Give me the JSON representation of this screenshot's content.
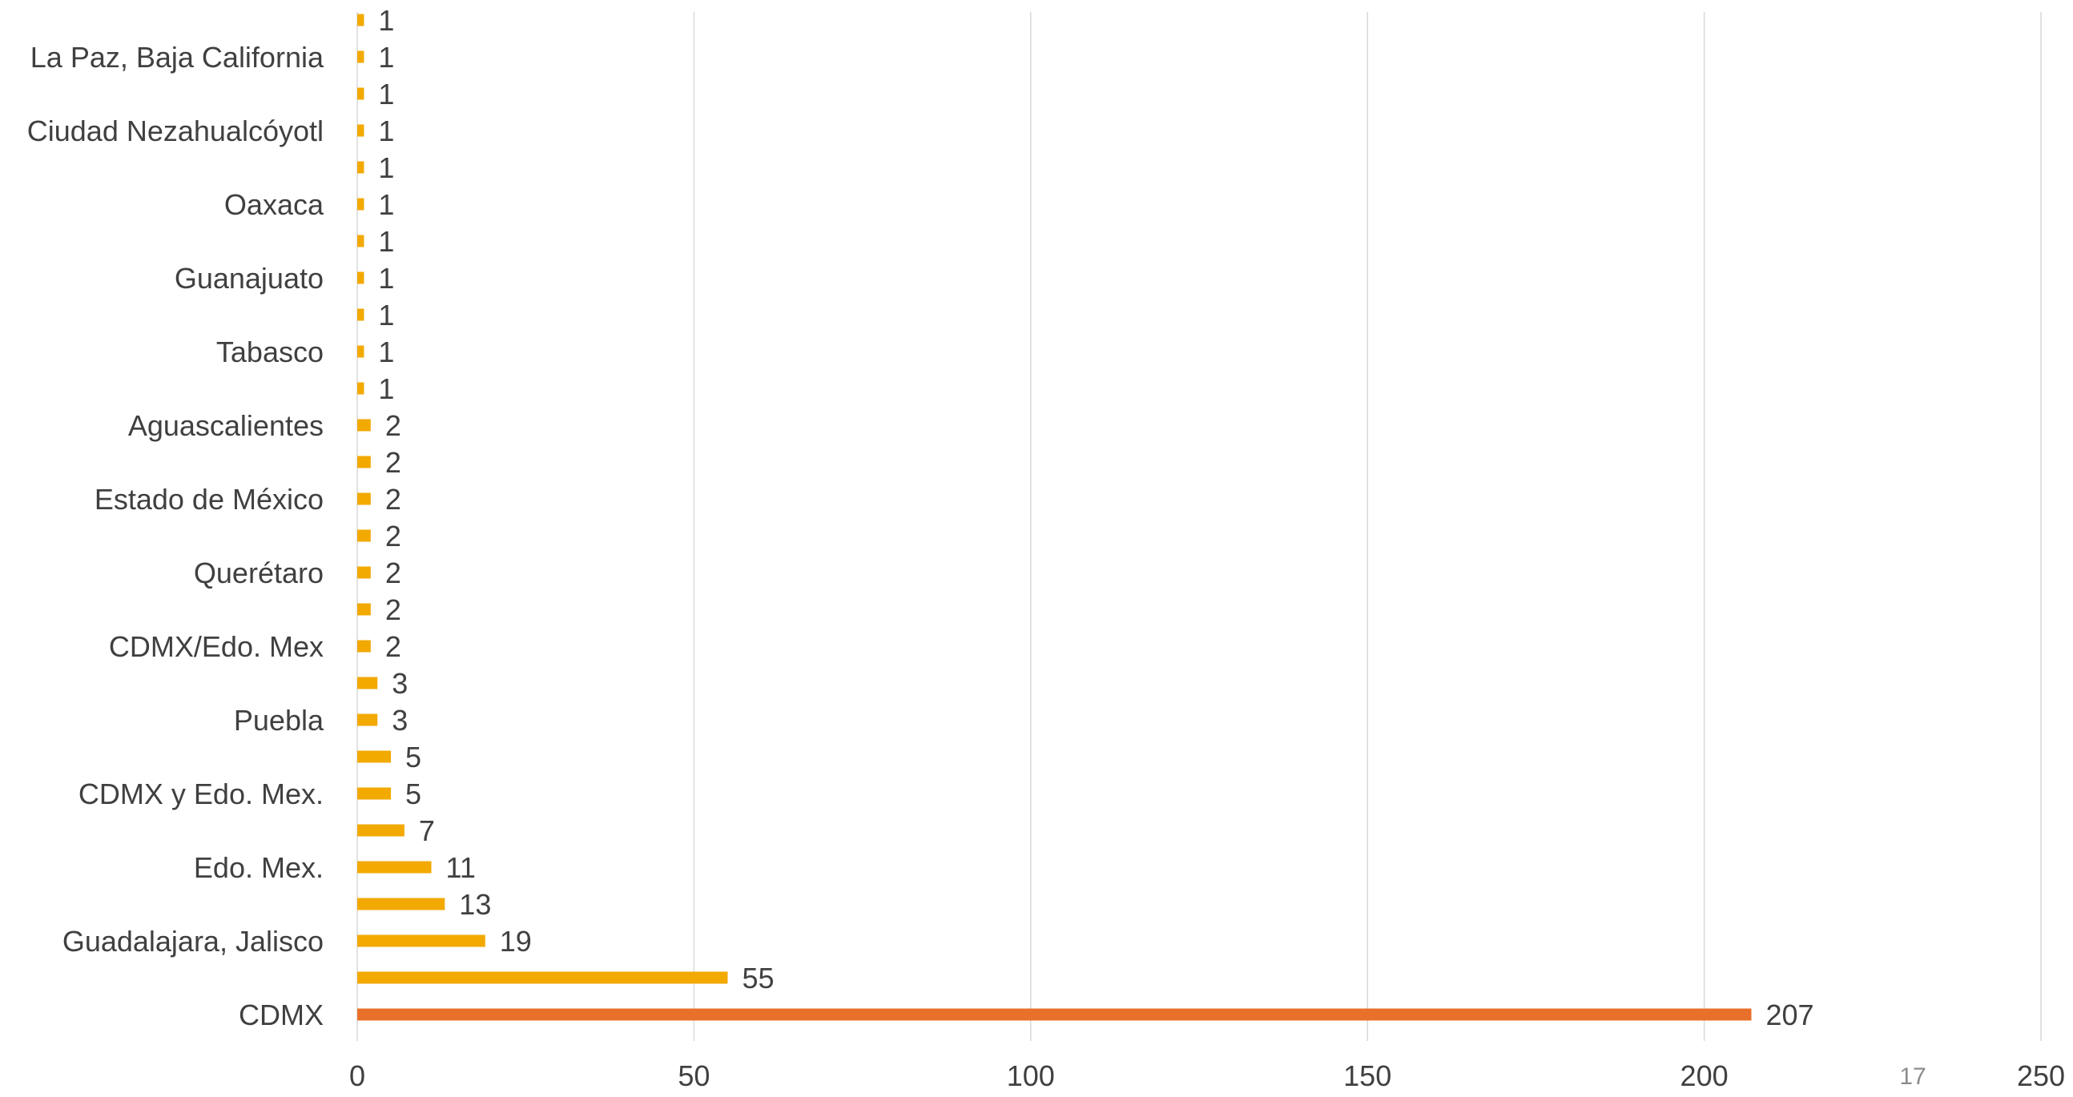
{
  "chart_data": {
    "type": "bar",
    "orientation": "horizontal",
    "categories": [
      "CDMX",
      "",
      "Guadalajara, Jalisco",
      "",
      "Edo. Mex.",
      "",
      "CDMX y Edo. Mex.",
      "",
      "Puebla",
      "",
      "CDMX/Edo. Mex",
      "",
      "Querétaro",
      "",
      "Estado de México",
      "",
      "Aguascalientes",
      "",
      "Tabasco",
      "",
      "Guanajuato",
      "",
      "Oaxaca",
      "",
      "Ciudad Nezahualcóyotl",
      "",
      "La Paz, Baja California",
      ""
    ],
    "values": [
      207,
      55,
      19,
      13,
      11,
      7,
      5,
      5,
      3,
      3,
      2,
      2,
      2,
      2,
      2,
      2,
      2,
      1,
      1,
      1,
      1,
      1,
      1,
      1,
      1,
      1,
      1,
      1
    ],
    "data_labels": [
      "207",
      "55",
      "19",
      "13",
      "11",
      "7",
      "5",
      "5",
      "3",
      "3",
      "2",
      "2",
      "2",
      "2",
      "2",
      "2",
      "2",
      "1",
      "1",
      "1",
      "1",
      "1",
      "1",
      "1",
      "1",
      "1",
      "1",
      "1"
    ],
    "xlim": [
      0,
      250
    ],
    "x_ticks": [
      0,
      50,
      100,
      150,
      200,
      250
    ],
    "x_tick_labels": [
      "0",
      "50",
      "100",
      "150",
      "200",
      "250"
    ],
    "grid": "vertical",
    "legend": "none",
    "title": "",
    "xlabel": "",
    "ylabel": "",
    "colors": {
      "highlight_bar": "#E8702A",
      "bar": "#F2A900",
      "gridline": "#d9d9d9",
      "text": "#404040"
    }
  },
  "footer": {
    "page_number": "17"
  }
}
